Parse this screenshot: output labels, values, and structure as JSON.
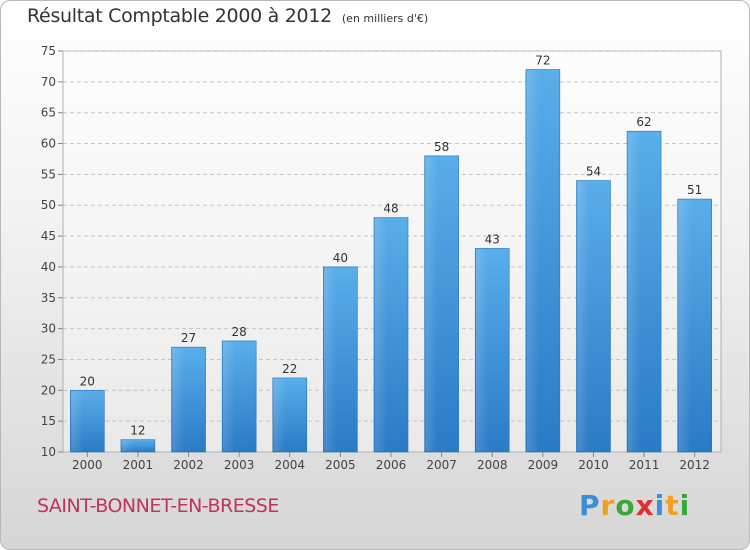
{
  "header": {
    "title": "Résultat Comptable 2000 à 2012",
    "subtitle": "(en milliers d'€)"
  },
  "footer": {
    "commune": "SAINT-BONNET-EN-BRESSE",
    "logo": {
      "text": "Proxiti",
      "letters": [
        "P",
        "r",
        "o",
        "x",
        "i",
        "t",
        "i"
      ],
      "colors": [
        "#3a8fd6",
        "#f0a020",
        "#3aa63a",
        "#e03030",
        "#3a8fd6",
        "#f0a020",
        "#3aa63a"
      ]
    }
  },
  "chart_data": {
    "type": "bar",
    "title": "Résultat Comptable 2000 à 2012",
    "subtitle": "(en milliers d'€)",
    "xlabel": "",
    "ylabel": "",
    "categories": [
      "2000",
      "2001",
      "2002",
      "2003",
      "2004",
      "2005",
      "2006",
      "2007",
      "2008",
      "2009",
      "2010",
      "2011",
      "2012"
    ],
    "values": [
      20,
      12,
      27,
      28,
      22,
      40,
      48,
      58,
      43,
      72,
      54,
      62,
      51
    ],
    "ylim": [
      10,
      75
    ],
    "yticks": [
      10,
      15,
      20,
      25,
      30,
      35,
      40,
      45,
      50,
      55,
      60,
      65,
      70,
      75
    ],
    "grid": true,
    "bar_color": "#4a9de0"
  }
}
